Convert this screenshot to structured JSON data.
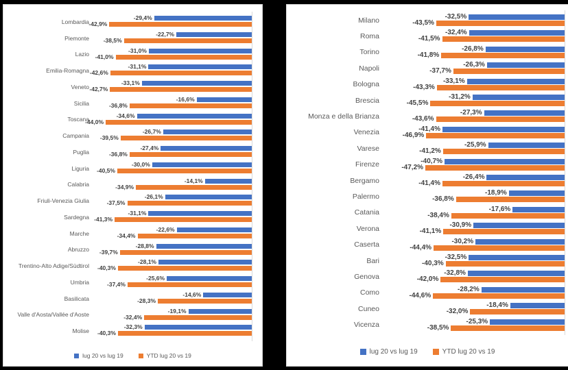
{
  "background_color": "#000000",
  "chart_data": [
    {
      "type": "bar",
      "orientation": "horizontal-right-anchored",
      "subject": "Italian regions",
      "unit": "%",
      "axis": {
        "zero_position": "right",
        "max_abs_value": 50,
        "gridlines": false
      },
      "legend_position": "bottom",
      "legend": [
        "lug 20 vs lug 19",
        "YTD lug 20 vs 19"
      ],
      "categories": [
        "Lombardia",
        "Piemonte",
        "Lazio",
        "Emilia-Romagna",
        "Veneto",
        "Sicilia",
        "Toscana",
        "Campania",
        "Puglia",
        "Liguria",
        "Calabria",
        "Friuli-Venezia Giulia",
        "Sardegna",
        "Marche",
        "Abruzzo",
        "Trentino-Alto Adige/Südtirol",
        "Umbria",
        "Basilicata",
        "Valle d'Aosta/Vallée d'Aoste",
        "Molise"
      ],
      "series": [
        {
          "name": "lug 20 vs lug 19",
          "color": "#4472C4",
          "values": [
            -29.4,
            -22.7,
            -31.0,
            -31.1,
            -33.1,
            -16.6,
            -34.6,
            -26.7,
            -27.4,
            -30.0,
            -14.1,
            -26.1,
            -31.1,
            -22.6,
            -28.8,
            -28.1,
            -25.6,
            -14.6,
            -19.1,
            -32.3
          ],
          "labels": [
            "-29,4%",
            "-22,7%",
            "-31,0%",
            "-31,1%",
            "-33,1%",
            "-16,6%",
            "-34,6%",
            "-26,7%",
            "-27,4%",
            "-30,0%",
            "-14,1%",
            "-26,1%",
            "-31,1%",
            "-22,6%",
            "-28,8%",
            "-28,1%",
            "-25,6%",
            "-14,6%",
            "-19,1%",
            "-32,3%"
          ]
        },
        {
          "name": "YTD lug 20 vs 19",
          "color": "#ED7D31",
          "values": [
            -42.9,
            -38.5,
            -41.0,
            -42.6,
            -42.7,
            -36.8,
            -44.0,
            -39.5,
            -36.8,
            -40.5,
            -34.9,
            -37.5,
            -41.3,
            -34.4,
            -39.7,
            -40.3,
            -37.4,
            -28.3,
            -32.4,
            -40.3
          ],
          "labels": [
            "-42,9%",
            "-38,5%",
            "-41,0%",
            "-42,6%",
            "-42,7%",
            "-36,8%",
            "-44,0%",
            "-39,5%",
            "-36,8%",
            "-40,5%",
            "-34,9%",
            "-37,5%",
            "-41,3%",
            "-34,4%",
            "-39,7%",
            "-40,3%",
            "-37,4%",
            "-28,3%",
            "-32,4%",
            "-40,3%"
          ]
        }
      ]
    },
    {
      "type": "bar",
      "orientation": "horizontal-right-anchored",
      "subject": "Italian cities/provinces",
      "unit": "%",
      "axis": {
        "zero_position": "right",
        "max_abs_value": 50,
        "gridlines": false
      },
      "legend_position": "bottom",
      "legend": [
        "lug 20 vs lug 19",
        "YTD lug 20 vs 19"
      ],
      "categories": [
        "Milano",
        "Roma",
        "Torino",
        "Napoli",
        "Bologna",
        "Brescia",
        "Monza e della Brianza",
        "Venezia",
        "Varese",
        "Firenze",
        "Bergamo",
        "Palermo",
        "Catania",
        "Verona",
        "Caserta",
        "Bari",
        "Genova",
        "Como",
        "Cuneo",
        "Vicenza"
      ],
      "series": [
        {
          "name": "lug 20 vs lug 19",
          "color": "#4472C4",
          "values": [
            -32.5,
            -32.4,
            -26.8,
            -26.3,
            -33.1,
            -31.2,
            -27.3,
            -41.4,
            -25.9,
            -40.7,
            -26.4,
            -18.9,
            -17.6,
            -30.9,
            -30.2,
            -32.5,
            -32.8,
            -28.2,
            -18.4,
            -25.3
          ],
          "labels": [
            "-32,5%",
            "-32,4%",
            "-26,8%",
            "-26,3%",
            "-33,1%",
            "-31,2%",
            "-27,3%",
            "-41,4%",
            "-25,9%",
            "-40,7%",
            "-26,4%",
            "-18,9%",
            "-17,6%",
            "-30,9%",
            "-30,2%",
            "-32,5%",
            "-32,8%",
            "-28,2%",
            "-18,4%",
            "-25,3%"
          ]
        },
        {
          "name": "YTD lug 20 vs 19",
          "color": "#ED7D31",
          "values": [
            -43.5,
            -41.5,
            -41.8,
            -37.7,
            -43.3,
            -45.5,
            -43.6,
            -46.9,
            -41.2,
            -47.2,
            -41.4,
            -36.8,
            -38.4,
            -41.1,
            -44.4,
            -40.3,
            -42.0,
            -44.6,
            -32.0,
            -38.5
          ],
          "labels": [
            "-43,5%",
            "-41,5%",
            "-41,8%",
            "-37,7%",
            "-43,3%",
            "-45,5%",
            "-43,6%",
            "-46,9%",
            "-41,2%",
            "-47,2%",
            "-41,4%",
            "-36,8%",
            "-38,4%",
            "-41,1%",
            "-44,4%",
            "-40,3%",
            "-42,0%",
            "-44,6%",
            "-32,0%",
            "-38,5%"
          ]
        }
      ]
    }
  ]
}
